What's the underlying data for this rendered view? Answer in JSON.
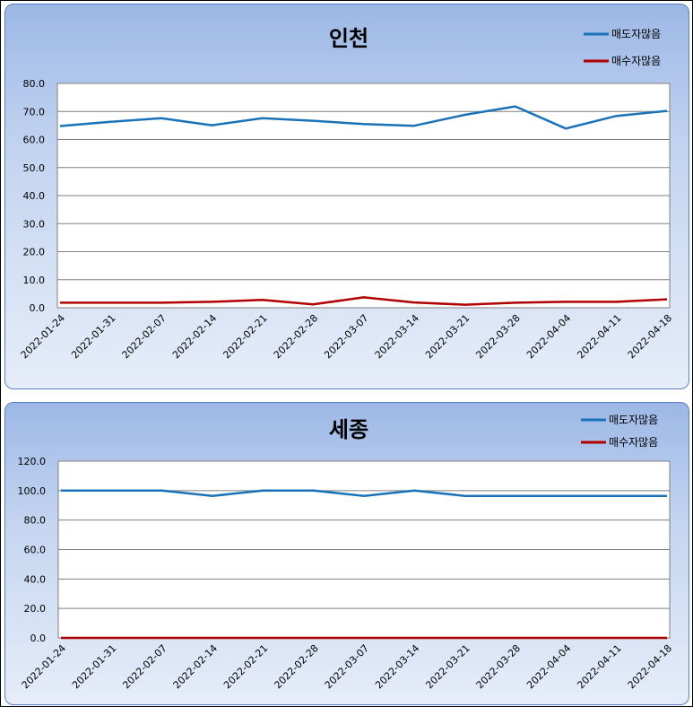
{
  "chart_data": [
    {
      "type": "line",
      "title": "인천",
      "x": [
        "2022-01-24",
        "2022-01-31",
        "2022-02-07",
        "2022-02-14",
        "2022-02-21",
        "2022-02-28",
        "2022-03-07",
        "2022-03-14",
        "2022-03-21",
        "2022-03-28",
        "2022-04-04",
        "2022-04-11",
        "2022-04-18"
      ],
      "ylim": [
        0,
        80
      ],
      "yticks": [
        "0.0",
        "10.0",
        "20.0",
        "30.0",
        "40.0",
        "50.0",
        "60.0",
        "70.0",
        "80.0"
      ],
      "grid": true,
      "legend": "top-right",
      "series": [
        {
          "name": "매도자많음",
          "color": "#1a73b8",
          "values": [
            64.8,
            66.3,
            67.6,
            65.1,
            67.6,
            66.7,
            65.5,
            64.9,
            68.8,
            71.8,
            63.9,
            68.4,
            70.2
          ]
        },
        {
          "name": "매수자많음",
          "color": "#b00000",
          "values": [
            1.8,
            1.8,
            1.8,
            2.1,
            2.8,
            1.2,
            3.7,
            1.9,
            1.1,
            1.8,
            2.1,
            2.1,
            3.0
          ]
        }
      ]
    },
    {
      "type": "line",
      "title": "세종",
      "x": [
        "2022-01-24",
        "2022-01-31",
        "2022-02-07",
        "2022-02-14",
        "2022-02-21",
        "2022-02-28",
        "2022-03-07",
        "2022-03-14",
        "2022-03-21",
        "2022-03-28",
        "2022-04-04",
        "2022-04-11",
        "2022-04-18"
      ],
      "ylim": [
        0,
        120
      ],
      "yticks": [
        "0.0",
        "20.0",
        "40.0",
        "60.0",
        "80.0",
        "100.0",
        "120.0"
      ],
      "grid": true,
      "legend": "top-right",
      "series": [
        {
          "name": "매도자많음",
          "color": "#1a73b8",
          "values": [
            100.0,
            100.0,
            100.0,
            96.4,
            100.0,
            100.0,
            96.4,
            100.0,
            96.4,
            96.4,
            96.4,
            96.4,
            96.4
          ]
        },
        {
          "name": "매수자많음",
          "color": "#b00000",
          "values": [
            0.0,
            0.0,
            0.0,
            0.0,
            0.0,
            0.0,
            0.0,
            0.0,
            0.0,
            0.0,
            0.0,
            0.0,
            0.0
          ]
        }
      ]
    }
  ]
}
